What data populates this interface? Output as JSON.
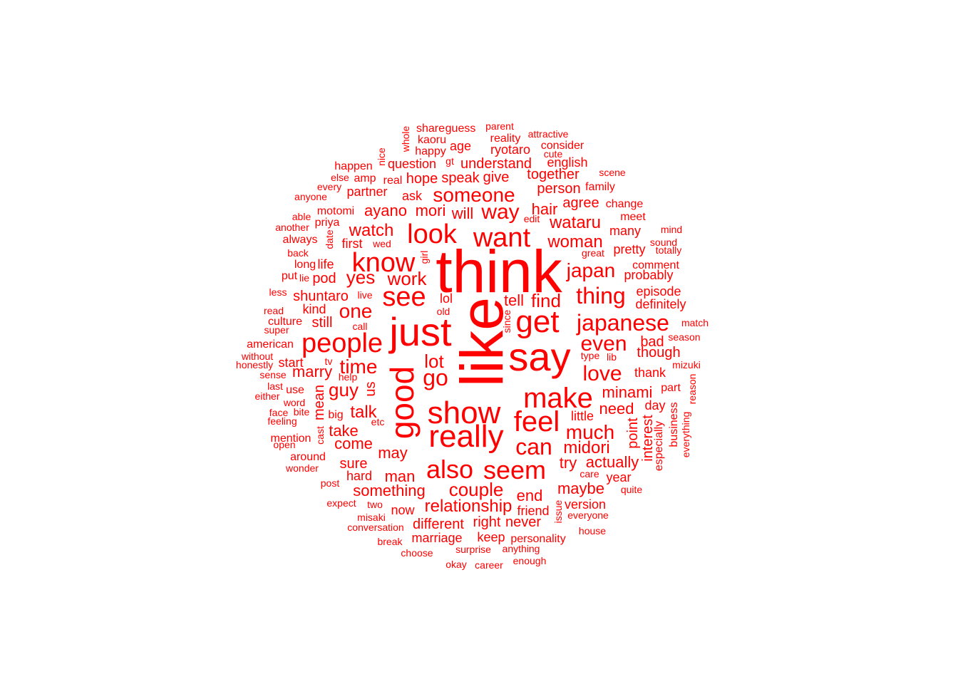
{
  "color": "#ff0000",
  "words": [
    "think",
    "like",
    "just",
    "say",
    "good",
    "get",
    "show",
    "really",
    "people",
    "make",
    "know",
    "feel",
    "also",
    "seem",
    "see",
    "look",
    "want",
    "japanese",
    "one",
    "time",
    "go",
    "can",
    "thing",
    "even",
    "love",
    "much",
    "someone",
    "way",
    "japan",
    "midori",
    "yes",
    "work",
    "couple",
    "relationship",
    "watch",
    "wataru",
    "woman",
    "find",
    "lot",
    "guy",
    "come",
    "take",
    "talk",
    "marry",
    "may",
    "man",
    "minami",
    "need",
    "actually",
    "maybe",
    "something",
    "hair",
    "ayano",
    "mori",
    "agree",
    "person",
    "together",
    "understand",
    "give",
    "speak",
    "hope",
    "ryotaro",
    "tell",
    "us",
    "mean",
    "still",
    "shuntaro",
    "pod",
    "kind",
    "first",
    "start",
    "try",
    "sure",
    "end",
    "friend",
    "version",
    "right",
    "never",
    "marriage",
    "different",
    "keep",
    "personality",
    "now",
    "hard",
    "little",
    "day",
    "year",
    "point",
    "interest",
    "especially",
    "business",
    "everything",
    "part",
    "though",
    "thank",
    "bad",
    "episode",
    "definitely",
    "probably",
    "pretty",
    "comment",
    "many",
    "meet",
    "change",
    "family",
    "english",
    "consider",
    "cute",
    "attractive",
    "parent",
    "reality",
    "question",
    "happy",
    "age",
    "guess",
    "share",
    "kaoru",
    "whole",
    "nice",
    "happen",
    "else",
    "every",
    "anyone",
    "amp",
    "real",
    "partner",
    "ask",
    "will",
    "motomi",
    "priya",
    "able",
    "another",
    "always",
    "back",
    "long",
    "life",
    "put",
    "lie",
    "less",
    "read",
    "culture",
    "super",
    "american",
    "without",
    "honestly",
    "sense",
    "last",
    "either",
    "use",
    "word",
    "face",
    "bite",
    "feeling",
    "mention",
    "open",
    "around",
    "wonder",
    "post",
    "expect",
    "two",
    "misaki",
    "conversation",
    "break",
    "choose",
    "surprise",
    "anything",
    "okay",
    "career",
    "enough",
    "everyone",
    "house",
    "issue",
    "care",
    "quite",
    "lol",
    "old",
    "since",
    "call",
    "live",
    "tv",
    "help",
    "etc",
    "big",
    "cast",
    "date",
    "wed",
    "girl",
    "gt",
    "edit",
    "great",
    "sound",
    "mind",
    "totally",
    "scene",
    "type",
    "lib",
    "season",
    "match",
    "mizuki",
    "reason",
    "always"
  ]
}
